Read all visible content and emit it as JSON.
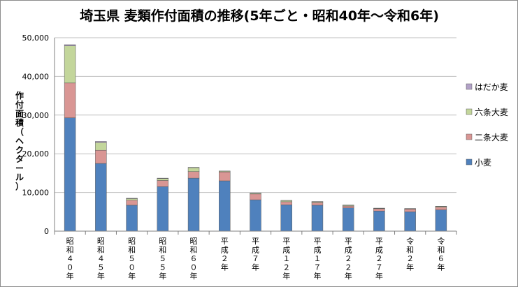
{
  "chart_data": {
    "type": "bar",
    "stacked": true,
    "title": "埼玉県 麦類作付面積の推移(5年ごと・昭和40年～令和6年)",
    "ylabel": "作付面積（ヘクタール）",
    "xlabel": "",
    "ylim": [
      0,
      50000
    ],
    "yticks": [
      0,
      10000,
      20000,
      30000,
      40000,
      50000
    ],
    "ytick_labels": [
      "0",
      "10,000",
      "20,000",
      "30,000",
      "40,000",
      "50,000"
    ],
    "grid": true,
    "legend_position": "right",
    "categories": [
      "昭和40年",
      "昭和45年",
      "昭和50年",
      "昭和55年",
      "昭和60年",
      "平成2年",
      "平成7年",
      "平成12年",
      "平成17年",
      "平成22年",
      "平成27年",
      "令和2年",
      "令和6年"
    ],
    "category_labels": [
      "昭和４０年",
      "昭和４５年",
      "昭和５０年",
      "昭和５５年",
      "昭和６０年",
      "平成２年",
      "平成７年",
      "平成１２年",
      "平成１７年",
      "平成２２年",
      "平成２７年",
      "令和２年",
      "令和６年"
    ],
    "series": [
      {
        "name": "小麦",
        "color": "#4f81bd",
        "values": [
          29300,
          17500,
          6700,
          11500,
          13700,
          13000,
          8100,
          6800,
          6700,
          6000,
          5200,
          5000,
          5500
        ]
      },
      {
        "name": "二条大麦",
        "color": "#d99694",
        "values": [
          9000,
          3400,
          1300,
          1600,
          1700,
          2300,
          1500,
          800,
          700,
          500,
          600,
          700,
          700
        ]
      },
      {
        "name": "六条大麦",
        "color": "#c3d69b",
        "values": [
          9600,
          2000,
          400,
          500,
          1000,
          200,
          200,
          300,
          200,
          200,
          100,
          100,
          200
        ]
      },
      {
        "name": "はだか麦",
        "color": "#b2a1c7",
        "values": [
          300,
          300,
          100,
          100,
          100,
          50,
          50,
          50,
          50,
          50,
          50,
          50,
          50
        ]
      }
    ]
  }
}
